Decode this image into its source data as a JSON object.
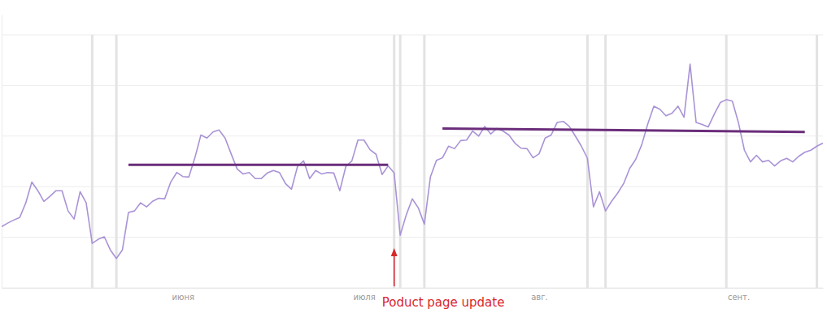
{
  "chart_data": {
    "type": "line",
    "categories": [
      null,
      null,
      null,
      null,
      null,
      null,
      null,
      null,
      null,
      null,
      null,
      null,
      null,
      null,
      null,
      null,
      null,
      null,
      null,
      null,
      null,
      null,
      null,
      null,
      null,
      null,
      null,
      null,
      null,
      null,
      "июня",
      null,
      null,
      null,
      null,
      null,
      null,
      null,
      null,
      null,
      null,
      null,
      null,
      null,
      null,
      null,
      null,
      null,
      null,
      null,
      null,
      null,
      null,
      null,
      null,
      null,
      null,
      null,
      null,
      null,
      "июля",
      null,
      null,
      null,
      null,
      null,
      null,
      null,
      null,
      null,
      null,
      null,
      null,
      null,
      null,
      null,
      null,
      null,
      null,
      null,
      null,
      null,
      null,
      null,
      null,
      null,
      null,
      null,
      null,
      "авг.",
      null,
      null,
      null,
      null,
      null,
      null,
      null,
      null,
      null,
      null,
      null,
      null,
      null,
      null,
      null,
      null,
      null,
      null,
      null,
      null,
      null,
      null,
      null,
      null,
      null,
      null,
      null,
      null,
      null,
      null,
      null,
      null,
      "сент.",
      null,
      null,
      null,
      null,
      null,
      null,
      null,
      null,
      null,
      null,
      null,
      null,
      null,
      null
    ],
    "series": [
      {
        "color": "#a993d6",
        "values": [
          1.21,
          1.28,
          1.34,
          1.39,
          1.68,
          2.09,
          1.92,
          1.71,
          1.81,
          1.92,
          1.92,
          1.52,
          1.36,
          1.9,
          1.68,
          0.88,
          0.96,
          1.01,
          0.75,
          0.58,
          0.75,
          1.49,
          1.52,
          1.68,
          1.6,
          1.71,
          1.77,
          1.76,
          2.09,
          2.28,
          2.2,
          2.19,
          2.57,
          3.02,
          2.96,
          3.08,
          3.12,
          2.96,
          2.65,
          2.35,
          2.25,
          2.28,
          2.16,
          2.16,
          2.27,
          2.32,
          2.28,
          2.06,
          1.95,
          2.4,
          2.51,
          2.16,
          2.32,
          2.25,
          2.28,
          2.27,
          1.92,
          2.4,
          2.51,
          2.92,
          2.92,
          2.73,
          2.64,
          2.24,
          2.41,
          2.27,
          1.04,
          1.44,
          1.76,
          1.58,
          1.26,
          2.19,
          2.52,
          2.57,
          2.8,
          2.75,
          2.91,
          2.92,
          3.1,
          3.0,
          3.19,
          3.04,
          3.15,
          3.1,
          3.02,
          2.86,
          2.76,
          2.75,
          2.57,
          2.65,
          2.96,
          3.02,
          3.27,
          3.29,
          3.19,
          3.0,
          2.8,
          2.56,
          1.6,
          1.9,
          1.52,
          1.71,
          1.87,
          2.06,
          2.36,
          2.54,
          2.83,
          3.24,
          3.59,
          3.53,
          3.4,
          3.45,
          3.59,
          3.37,
          4.42,
          3.27,
          3.23,
          3.18,
          3.43,
          3.66,
          3.72,
          3.69,
          3.27,
          2.72,
          2.49,
          2.62,
          2.49,
          2.52,
          2.41,
          2.51,
          2.56,
          2.49,
          2.6,
          2.68,
          2.72,
          2.8,
          2.86
        ]
      }
    ],
    "ylim": [
      0,
      5.4
    ],
    "yticks": [
      0,
      1,
      2,
      3,
      4,
      5
    ],
    "grid": true,
    "tick_labels": "x",
    "vertical_lines": [
      15,
      19,
      65,
      66,
      70,
      97,
      100,
      120,
      135
    ],
    "average_lines": [
      {
        "from": 21,
        "to": 64,
        "values": [
          2.43,
          2.43
        ],
        "color": "#6b2d7b"
      },
      {
        "from": 73,
        "to": 133,
        "values": [
          3.15,
          3.08
        ],
        "color": "#6b2d7b"
      }
    ],
    "annotations": [
      {
        "text": "Poduct page update",
        "x": 65,
        "color": "#d9262c"
      }
    ]
  }
}
